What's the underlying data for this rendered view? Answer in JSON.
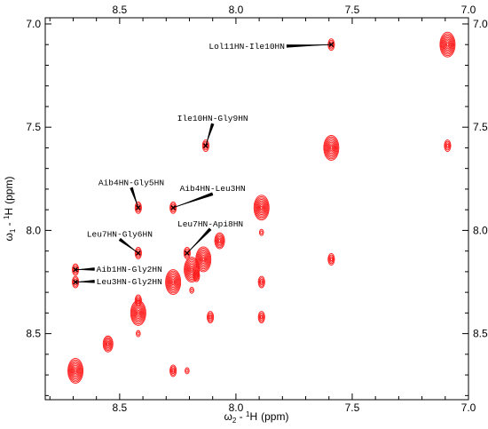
{
  "chart_data": {
    "type": "scatter",
    "subtype": "2D NMR contour spectrum (ROESY/NOESY)",
    "xlabel_parts": {
      "omega": "ω",
      "sub": "2",
      "dash": " - ",
      "sup": "1",
      "nucleus": "H",
      "unit": "(ppm)"
    },
    "ylabel_parts": {
      "omega": "ω",
      "sub": "1",
      "dash": " - ",
      "sup": "1",
      "nucleus": "H",
      "unit": "(ppm)"
    },
    "xlim": [
      8.82,
      7.0
    ],
    "ylim": [
      8.82,
      6.97
    ],
    "x_reversed": true,
    "y_increases_downward": true,
    "x_ticks": [
      "8.5",
      "8.0",
      "7.5",
      "7.0"
    ],
    "x_tick_values": [
      8.5,
      8.0,
      7.5,
      7.0
    ],
    "y_ticks": [
      "7.0",
      "7.5",
      "8.0",
      "8.5"
    ],
    "y_tick_values": [
      7.0,
      7.5,
      8.0,
      8.5
    ],
    "ticks_on_top_and_bottom": true,
    "ticks_on_left_and_right": true,
    "grid": false,
    "contour_color": "#ff1a1a",
    "peaks": [
      {
        "x": 7.09,
        "y": 7.1,
        "size": "strong"
      },
      {
        "x": 7.59,
        "y": 7.1,
        "size": "weak"
      },
      {
        "x": 7.59,
        "y": 7.6,
        "size": "strong"
      },
      {
        "x": 7.09,
        "y": 7.59,
        "size": "weak"
      },
      {
        "x": 8.13,
        "y": 7.59,
        "size": "weak"
      },
      {
        "x": 7.89,
        "y": 7.89,
        "size": "strong"
      },
      {
        "x": 8.27,
        "y": 7.89,
        "size": "weak"
      },
      {
        "x": 8.42,
        "y": 7.89,
        "size": "weak"
      },
      {
        "x": 8.07,
        "y": 8.05,
        "size": "medium"
      },
      {
        "x": 8.14,
        "y": 8.14,
        "size": "strong"
      },
      {
        "x": 8.19,
        "y": 8.19,
        "size": "strong"
      },
      {
        "x": 8.27,
        "y": 8.25,
        "size": "strong"
      },
      {
        "x": 8.21,
        "y": 8.11,
        "size": "weak"
      },
      {
        "x": 8.42,
        "y": 8.11,
        "size": "weak"
      },
      {
        "x": 8.69,
        "y": 8.19,
        "size": "weak"
      },
      {
        "x": 8.69,
        "y": 8.25,
        "size": "weak"
      },
      {
        "x": 7.89,
        "y": 8.01,
        "size": "tiny"
      },
      {
        "x": 7.89,
        "y": 8.25,
        "size": "weak"
      },
      {
        "x": 7.59,
        "y": 8.14,
        "size": "weak"
      },
      {
        "x": 8.17,
        "y": 8.22,
        "size": "weak"
      },
      {
        "x": 8.19,
        "y": 8.29,
        "size": "tiny"
      },
      {
        "x": 8.42,
        "y": 8.4,
        "size": "strong"
      },
      {
        "x": 8.42,
        "y": 8.34,
        "size": "weak"
      },
      {
        "x": 8.11,
        "y": 8.42,
        "size": "weak"
      },
      {
        "x": 7.89,
        "y": 8.42,
        "size": "weak"
      },
      {
        "x": 8.42,
        "y": 8.5,
        "size": "tiny"
      },
      {
        "x": 8.55,
        "y": 8.55,
        "size": "medium"
      },
      {
        "x": 8.69,
        "y": 8.68,
        "size": "strong"
      },
      {
        "x": 8.27,
        "y": 8.68,
        "size": "weak"
      },
      {
        "x": 8.21,
        "y": 8.68,
        "size": "tiny"
      }
    ],
    "annotations": [
      {
        "label": "Lol11HN-Ile10HN",
        "x": 7.59,
        "y": 7.1,
        "text_x": 7.79,
        "text_y": 7.12,
        "anchor": "end"
      },
      {
        "label": "Ile10HN-Gly9HN",
        "x": 8.13,
        "y": 7.59,
        "text_x": 8.1,
        "text_y": 7.47,
        "anchor": "middle"
      },
      {
        "label": "Aib4HN-Gly5HN",
        "x": 8.42,
        "y": 7.89,
        "text_x": 8.45,
        "text_y": 7.78,
        "anchor": "middle"
      },
      {
        "label": "Aib4HN-Leu3HN",
        "x": 8.27,
        "y": 7.89,
        "text_x": 8.1,
        "text_y": 7.81,
        "anchor": "middle"
      },
      {
        "label": "Leu7HN-Gly6HN",
        "x": 8.42,
        "y": 8.11,
        "text_x": 8.5,
        "text_y": 8.03,
        "anchor": "middle"
      },
      {
        "label": "Leu7HN-Api8HN",
        "x": 8.21,
        "y": 8.11,
        "text_x": 8.11,
        "text_y": 7.98,
        "anchor": "middle"
      },
      {
        "label": "Aib1HN-Gly2HN",
        "x": 8.69,
        "y": 8.19,
        "text_x": 8.6,
        "text_y": 8.2,
        "anchor": "start"
      },
      {
        "label": "Leu3HN-Gly2HN",
        "x": 8.69,
        "y": 8.25,
        "text_x": 8.6,
        "text_y": 8.26,
        "anchor": "start"
      }
    ]
  }
}
